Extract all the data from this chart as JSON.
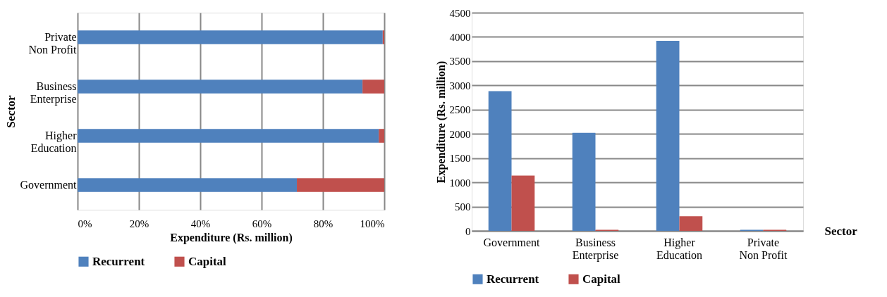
{
  "chart_data": [
    {
      "type": "bar",
      "orientation": "horizontal",
      "stacked": true,
      "xlabel": "Expenditure (Rs. million)",
      "ylabel": "Sector",
      "categories": [
        "Private Non Profit",
        "Business Enterprise",
        "Higher Education",
        "Government"
      ],
      "series": [
        {
          "name": "Recurrent",
          "color": "#4f81bd",
          "values": [
            99.5,
            92.9,
            98.2,
            71.5
          ]
        },
        {
          "name": "Capital",
          "color": "#c0504d",
          "values": [
            0.5,
            7.1,
            1.8,
            28.5
          ]
        }
      ],
      "xlim": [
        0,
        100
      ],
      "xticks": [
        {
          "value": 0,
          "label": "0%"
        },
        {
          "value": 20,
          "label": "20%"
        },
        {
          "value": 40,
          "label": "40%"
        },
        {
          "value": 60,
          "label": "60%"
        },
        {
          "value": 80,
          "label": "80%"
        },
        {
          "value": 100,
          "label": "100%"
        }
      ],
      "grid": "x",
      "legend": "bottom"
    },
    {
      "type": "bar",
      "xlabel": "Sector",
      "ylabel": "Expenditure (Rs. million)",
      "categories": [
        "Government",
        "Business Enterprise",
        "Higher Education",
        "Private Non Profit"
      ],
      "series": [
        {
          "name": "Recurrent",
          "color": "#4f81bd",
          "values": [
            2880,
            2020,
            3920,
            20
          ]
        },
        {
          "name": "Capital",
          "color": "#c0504d",
          "values": [
            1140,
            20,
            300,
            20
          ]
        }
      ],
      "ylim": [
        0,
        4500
      ],
      "yticks": [
        0,
        500,
        1000,
        1500,
        2000,
        2500,
        3000,
        3500,
        4000,
        4500
      ],
      "grid": "y",
      "legend": "bottom"
    }
  ]
}
